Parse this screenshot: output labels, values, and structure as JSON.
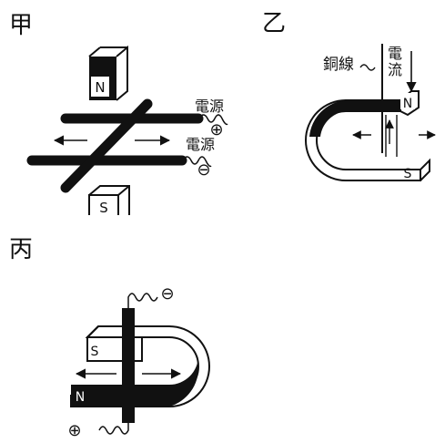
{
  "panels": {
    "jia": {
      "label": "甲",
      "magnet_top": "N",
      "magnet_bottom": "S",
      "power_label_1": "電源",
      "power_label_2": "電源",
      "plus": "⊕",
      "minus": "⊖"
    },
    "yi": {
      "label": "乙",
      "wire_label": "銅線",
      "current_label_1": "電",
      "current_label_2": "流",
      "pole_n": "N",
      "pole_s": "S"
    },
    "bing": {
      "label": "丙",
      "pole_s": "S",
      "pole_n": "N",
      "plus": "⊕",
      "minus": "⊖"
    }
  }
}
